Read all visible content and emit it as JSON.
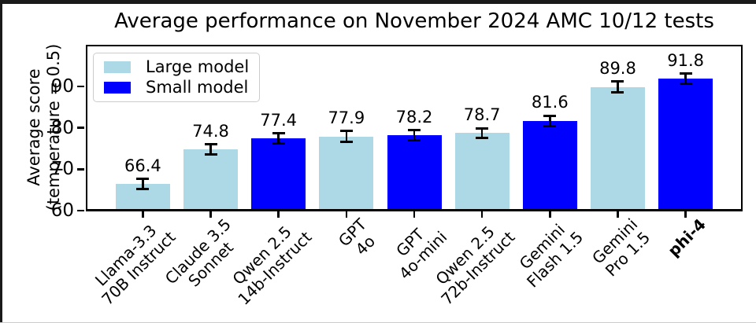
{
  "chart_data": {
    "type": "bar",
    "title": "Average performance on November 2024 AMC 10/12 tests",
    "ylabel": "Average score\n(temperature = 0.5)",
    "xlabel": "",
    "ylim": [
      60,
      100
    ],
    "yticks": [
      60,
      70,
      80,
      90
    ],
    "grid": false,
    "legend_position": "upper left",
    "legend": [
      {
        "label": "Large model",
        "color": "#ADD8E6"
      },
      {
        "label": "Small model",
        "color": "#0000FF"
      }
    ],
    "bars": [
      {
        "label": "Llama-3.3\n70B Instruct",
        "value": 66.4,
        "error": 1.2,
        "group": "Large model",
        "bold": false
      },
      {
        "label": "Claude 3.5\nSonnet",
        "value": 74.8,
        "error": 1.2,
        "group": "Large model",
        "bold": false
      },
      {
        "label": "Qwen 2.5\n14b-Instruct",
        "value": 77.4,
        "error": 1.2,
        "group": "Small model",
        "bold": false
      },
      {
        "label": "GPT\n4o",
        "value": 77.9,
        "error": 1.3,
        "group": "Large model",
        "bold": false
      },
      {
        "label": "GPT\n4o-mini",
        "value": 78.2,
        "error": 1.2,
        "group": "Small model",
        "bold": false
      },
      {
        "label": "Qwen 2.5\n72b-Instruct",
        "value": 78.7,
        "error": 1.2,
        "group": "Large model",
        "bold": false
      },
      {
        "label": "Gemini\nFlash 1.5",
        "value": 81.6,
        "error": 1.3,
        "group": "Small model",
        "bold": false
      },
      {
        "label": "Gemini\nPro 1.5",
        "value": 89.8,
        "error": 1.3,
        "group": "Large model",
        "bold": false
      },
      {
        "label": "phi-4",
        "value": 91.8,
        "error": 1.2,
        "group": "Small model",
        "bold": true
      }
    ]
  }
}
